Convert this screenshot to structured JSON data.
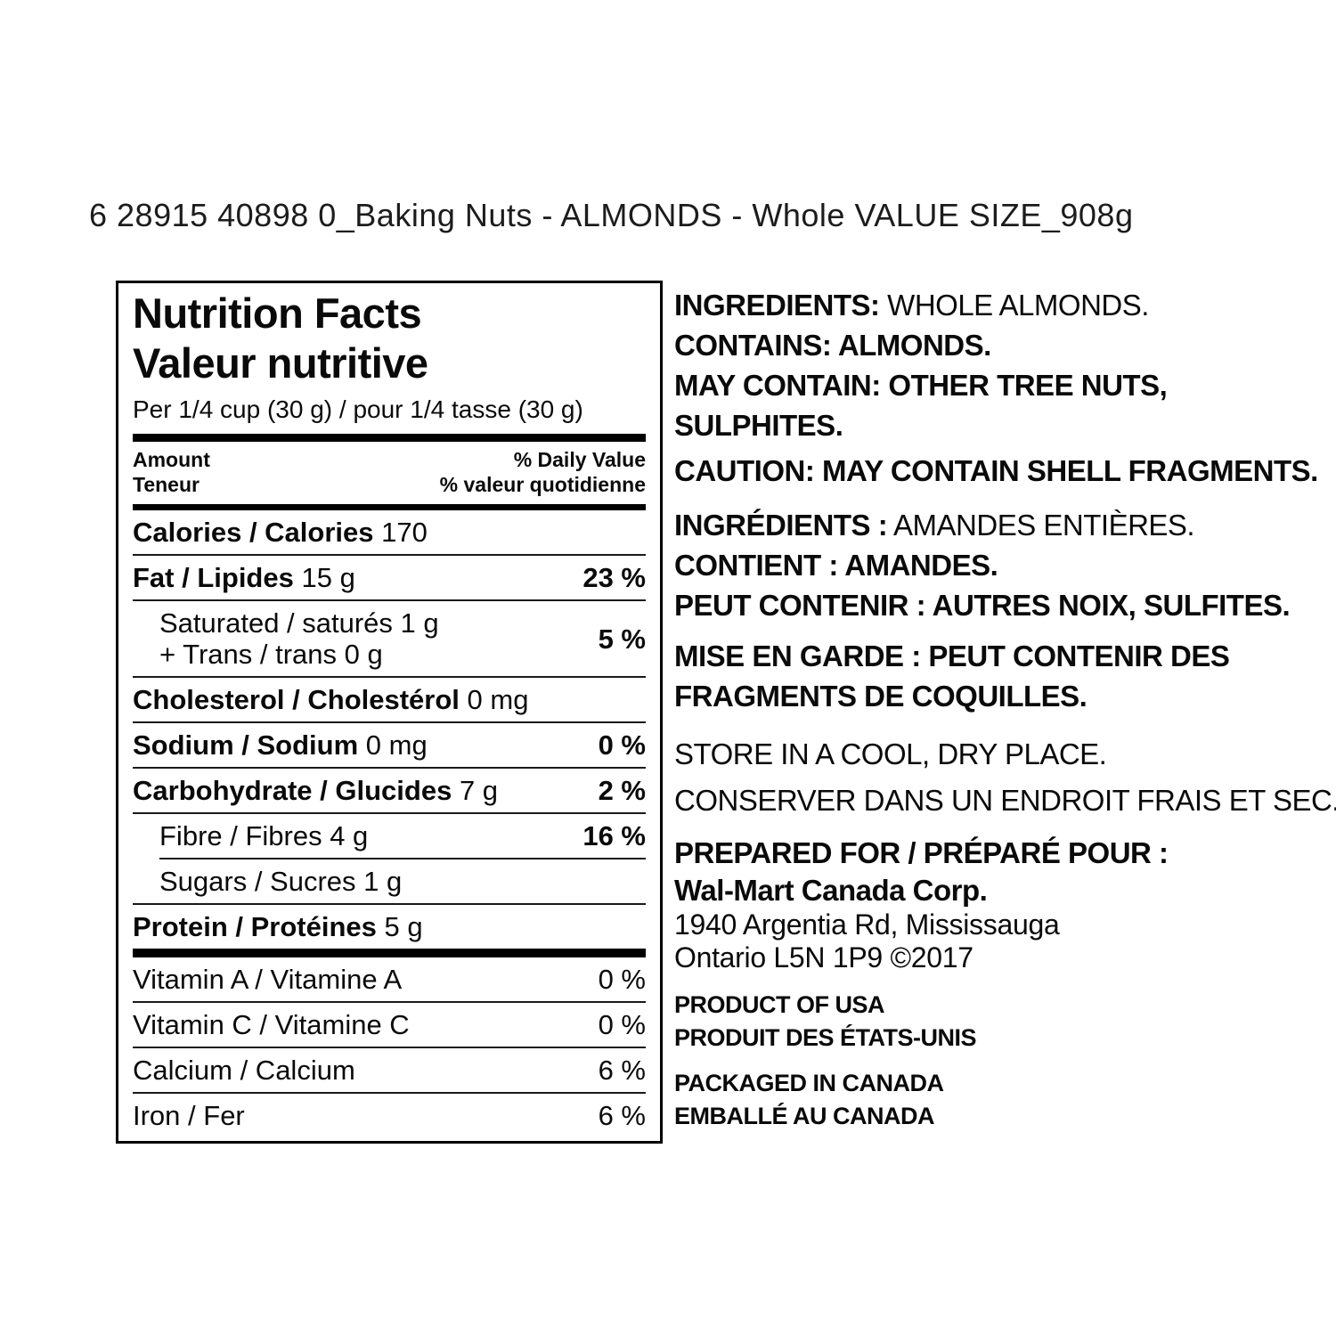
{
  "header": {
    "title": "6 28915 40898 0_Baking Nuts - ALMONDS - Whole VALUE SIZE_908g"
  },
  "nutrition": {
    "title_en": "Nutrition Facts",
    "title_fr": "Valeur nutritive",
    "serving": "Per 1/4 cup (30 g) / pour 1/4 tasse (30 g)",
    "amount_header": {
      "line1": "Amount",
      "line2": "Teneur"
    },
    "dv_header": {
      "line1": "% Daily Value",
      "line2": "% valeur quotidienne"
    },
    "rows": {
      "calories": {
        "label_bold": "Calories / Calories",
        "label_rest": " 170"
      },
      "fat": {
        "label_bold": "Fat / Lipides",
        "label_rest": " 15 g",
        "dv": "23 %"
      },
      "satfat": {
        "line1": "Saturated / saturés 1 g",
        "line2": "+ Trans / trans 0 g",
        "dv": "5 %"
      },
      "cholesterol": {
        "label_bold": "Cholesterol / Cholestérol",
        "label_rest": " 0 mg"
      },
      "sodium": {
        "label_bold": "Sodium / Sodium",
        "label_rest": " 0 mg",
        "dv": "0 %"
      },
      "carbohydrate": {
        "label_bold": "Carbohydrate / Glucides",
        "label_rest": " 7 g",
        "dv": "2 %"
      },
      "fibre": {
        "label": "Fibre / Fibres 4 g",
        "dv": "16 %"
      },
      "sugars": {
        "label": "Sugars / Sucres 1 g"
      },
      "protein": {
        "label_bold": "Protein / Protéines",
        "label_rest": " 5 g"
      },
      "vitamin_a": {
        "label": "Vitamin A / Vitamine A",
        "dv": "0 %"
      },
      "vitamin_c": {
        "label": "Vitamin C / Vitamine C",
        "dv": "0 %"
      },
      "calcium": {
        "label": "Calcium / Calcium",
        "dv": "6 %"
      },
      "iron": {
        "label": "Iron / Fer",
        "dv": "6 %"
      }
    }
  },
  "info": {
    "ingredients_en": {
      "label": "INGREDIENTS:",
      "value": " WHOLE ALMONDS."
    },
    "contains_en": "CONTAINS: ALMONDS.",
    "may_contain_en_line1": "MAY CONTAIN: OTHER TREE NUTS,",
    "may_contain_en_line2": "SULPHITES.",
    "caution_en": "CAUTION: MAY CONTAIN SHELL FRAGMENTS.",
    "ingredients_fr": {
      "label": "INGRÉDIENTS :",
      "value": " AMANDES ENTIÈRES."
    },
    "contains_fr": "CONTIENT : AMANDES.",
    "may_contain_fr": "PEUT CONTENIR : AUTRES NOIX, SULFITES.",
    "caution_fr_line1": "MISE EN GARDE : PEUT CONTENIR DES",
    "caution_fr_line2": "FRAGMENTS DE COQUILLES.",
    "storage_en": "STORE IN A COOL, DRY PLACE.",
    "storage_fr": "CONSERVER DANS UN ENDROIT FRAIS ET SEC.",
    "prepared_heading": "PREPARED FOR / PRÉPARÉ POUR :",
    "prepared_company": "Wal-Mart Canada Corp.",
    "prepared_address1": "1940 Argentia Rd, Mississauga",
    "prepared_address2": "Ontario L5N 1P9 ©2017",
    "origin_en": "PRODUCT OF USA",
    "origin_fr": "PRODUIT DES ÉTATS-UNIS",
    "packaged_en": "PACKAGED IN CANADA",
    "packaged_fr": "EMBALLÉ AU CANADA"
  },
  "colors": {
    "text": "#0a0a0a",
    "background": "#ffffff",
    "border": "#000000"
  }
}
